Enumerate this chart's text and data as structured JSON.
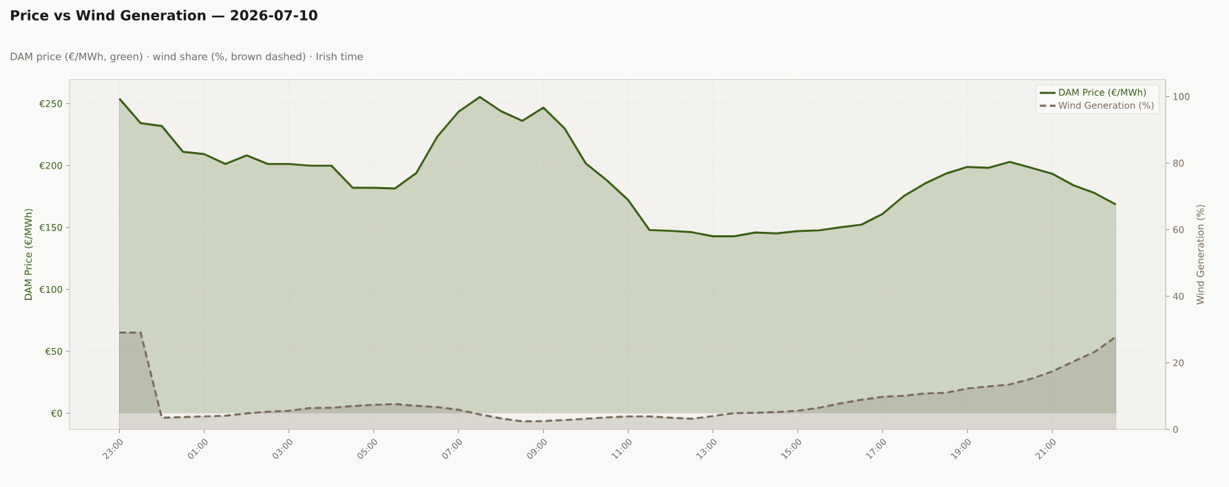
{
  "chart_data": {
    "type": "area",
    "title": "Price vs Wind Generation — 2026-07-10",
    "subtitle": "DAM price (€/MWh, green)  ·  wind share (%, brown dashed)  ·  Irish time",
    "ylabel": "DAM Price (€/MWh)",
    "y2label": "Wind Generation (%)",
    "categories": [
      "23:00",
      null,
      null,
      null,
      "01:00",
      null,
      null,
      null,
      "03:00",
      null,
      null,
      null,
      "05:00",
      null,
      null,
      null,
      "07:00",
      null,
      null,
      null,
      "09:00",
      null,
      null,
      null,
      "11:00",
      null,
      null,
      null,
      "13:00",
      null,
      null,
      null,
      "15:00",
      null,
      null,
      null,
      "17:00",
      null,
      null,
      null,
      "19:00",
      null,
      null,
      null,
      "21:00",
      null,
      null,
      null
    ],
    "series": [
      {
        "name": "DAM Price (€/MWh)",
        "color": "#3a5f14",
        "axis": "y",
        "line_style": "solid",
        "values": [
          254,
          234.3,
          231.9,
          211.1,
          209.3,
          201.3,
          208.2,
          201.3,
          201.3,
          199.9,
          199.9,
          182.1,
          182.1,
          181.5,
          193.9,
          223.5,
          243.5,
          255.4,
          243.9,
          236.1,
          246.7,
          230.0,
          201.7,
          188.0,
          172.1,
          148.0,
          147.3,
          146.2,
          142.9,
          142.9,
          146.0,
          145.3,
          147.1,
          147.7,
          150.1,
          152.3,
          161.0,
          175.4,
          185.6,
          193.6,
          198.9,
          198.2,
          203.0,
          198.2,
          193.4,
          184.1,
          177.8,
          168.6
        ]
      },
      {
        "name": "Wind Generation (%)",
        "color": "#7a6a5a",
        "axis": "y2",
        "line_style": "dashed",
        "values": [
          29.1,
          29.1,
          3.5,
          3.7,
          3.9,
          4.1,
          4.8,
          5.3,
          5.6,
          6.4,
          6.5,
          7.0,
          7.4,
          7.6,
          7.1,
          6.7,
          5.9,
          4.5,
          3.3,
          2.4,
          2.5,
          2.8,
          3.2,
          3.6,
          3.9,
          3.9,
          3.5,
          3.2,
          4.0,
          4.9,
          5.0,
          5.2,
          5.6,
          6.5,
          7.8,
          8.9,
          9.8,
          10.1,
          10.8,
          11.0,
          12.3,
          12.9,
          13.5,
          15.2,
          17.4,
          20.4,
          23.3,
          27.8
        ]
      }
    ],
    "ylim": [
      -13,
      269.4
    ],
    "yticks": [
      {
        "value": 0,
        "label": "€0"
      },
      {
        "value": 50,
        "label": "€50"
      },
      {
        "value": 100,
        "label": "€100"
      },
      {
        "value": 150,
        "label": "€150"
      },
      {
        "value": 200,
        "label": "€200"
      },
      {
        "value": 250,
        "label": "€250"
      }
    ],
    "y2lim": [
      0,
      105.1
    ],
    "y2ticks": [
      0,
      20,
      40,
      60,
      80,
      100
    ],
    "grid": true,
    "legend": "top right"
  }
}
